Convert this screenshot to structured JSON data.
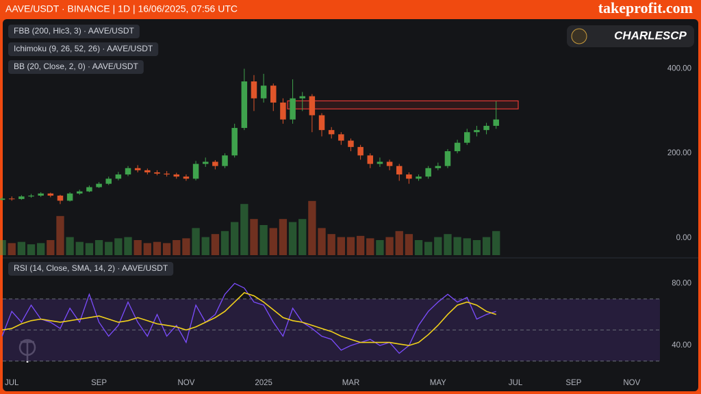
{
  "header": {
    "title": "AAVE/USDT · BINANCE | 1D | 16/06/2025, 07:56 UTC",
    "brand": "takeprofit.com",
    "logo_text": "CHARLESCP"
  },
  "indicators": [
    "FBB (200, Hlc3, 3) · AAVE/USDT",
    "Ichimoku (9, 26, 52, 26) · AAVE/USDT",
    "BB (20, Close, 2, 0) · AAVE/USDT"
  ],
  "chart_data": [
    {
      "type": "candlestick",
      "open": [
        90,
        93,
        92,
        98,
        100,
        105,
        100,
        88,
        105,
        110,
        120,
        128,
        140,
        150,
        165,
        160,
        155,
        152,
        150,
        145,
        140,
        175,
        180,
        170,
        195,
        260,
        370,
        330,
        360,
        320,
        280,
        330,
        335,
        290,
        255,
        245,
        230,
        215,
        195,
        175,
        180,
        170,
        150,
        140,
        145,
        165,
        170,
        205,
        225,
        250,
        255,
        265,
        null,
        null,
        null,
        null,
        null,
        null,
        null,
        null,
        null,
        null,
        null,
        null,
        null,
        null,
        null,
        null
      ],
      "high": [
        97,
        98,
        101,
        104,
        108,
        107,
        102,
        108,
        114,
        124,
        132,
        145,
        156,
        170,
        172,
        164,
        160,
        158,
        154,
        150,
        182,
        190,
        184,
        200,
        270,
        400,
        385,
        388,
        365,
        330,
        375,
        345,
        340,
        295,
        262,
        250,
        235,
        220,
        200,
        190,
        185,
        175,
        155,
        150,
        170,
        178,
        210,
        232,
        258,
        265,
        272,
        323,
        null,
        null,
        null,
        null,
        null,
        null,
        null,
        null,
        null,
        null,
        null,
        null,
        null,
        null,
        null,
        null
      ],
      "low": [
        88,
        88,
        90,
        95,
        97,
        96,
        80,
        86,
        102,
        108,
        118,
        125,
        136,
        146,
        155,
        150,
        148,
        145,
        140,
        135,
        136,
        168,
        162,
        165,
        190,
        255,
        300,
        320,
        300,
        270,
        270,
        300,
        250,
        240,
        235,
        220,
        205,
        185,
        165,
        168,
        160,
        135,
        128,
        135,
        140,
        160,
        165,
        200,
        220,
        240,
        245,
        258,
        null,
        null,
        null,
        null,
        null,
        null,
        null,
        null,
        null,
        null,
        null,
        null,
        null,
        null,
        null,
        null
      ],
      "close": [
        93,
        92,
        98,
        100,
        105,
        100,
        88,
        105,
        110,
        120,
        128,
        140,
        150,
        165,
        160,
        155,
        152,
        150,
        145,
        140,
        175,
        180,
        170,
        195,
        260,
        370,
        330,
        360,
        320,
        280,
        330,
        335,
        290,
        255,
        245,
        230,
        215,
        195,
        175,
        180,
        170,
        150,
        140,
        145,
        165,
        170,
        205,
        225,
        250,
        255,
        265,
        280,
        null,
        null,
        null,
        null,
        null,
        null,
        null,
        null,
        null,
        null,
        null,
        null,
        null,
        null,
        null,
        null
      ],
      "volume": [
        25,
        20,
        22,
        18,
        20,
        25,
        65,
        30,
        22,
        20,
        25,
        22,
        28,
        30,
        25,
        20,
        22,
        20,
        25,
        28,
        45,
        30,
        35,
        40,
        55,
        85,
        60,
        50,
        45,
        60,
        55,
        60,
        90,
        45,
        35,
        30,
        30,
        32,
        28,
        25,
        30,
        40,
        35,
        25,
        22,
        30,
        35,
        30,
        28,
        25,
        30,
        40,
        null,
        null,
        null,
        null,
        null,
        null,
        null,
        null,
        null,
        null,
        null,
        null,
        null,
        null,
        null,
        null
      ],
      "volume_lim": [
        0,
        100
      ],
      "up_color": "#3fa34d",
      "down_color": "#e0552a",
      "zone": [
        305,
        324
      ],
      "zone_color": "#e53935",
      "ylim": [
        -44,
        514
      ],
      "yticks": [
        {
          "value": 0,
          "label": "0.00"
        },
        {
          "value": 200,
          "label": "200.00"
        },
        {
          "value": 400,
          "label": "400.00"
        }
      ]
    },
    {
      "type": "line",
      "categories": [
        null,
        "JUL",
        null,
        null,
        null,
        null,
        null,
        null,
        null,
        null,
        "SEP",
        null,
        null,
        null,
        null,
        null,
        null,
        null,
        null,
        "NOV",
        null,
        null,
        null,
        null,
        null,
        null,
        null,
        "2025",
        null,
        null,
        null,
        null,
        null,
        null,
        null,
        null,
        "MAR",
        null,
        null,
        null,
        null,
        null,
        null,
        null,
        null,
        "MAY",
        null,
        null,
        null,
        null,
        null,
        null,
        null,
        "JUL",
        null,
        null,
        null,
        null,
        null,
        "SEP",
        null,
        null,
        null,
        null,
        null,
        "NOV",
        null,
        null
      ],
      "label": "RSI (14, Close, SMA, 14, 2) · AAVE/USDT",
      "series": [
        {
          "color": "#7c4dff",
          "values": [
            46,
            62,
            55,
            66,
            57,
            55,
            51,
            64,
            55,
            73,
            55,
            46,
            53,
            68,
            55,
            46,
            60,
            46,
            53,
            42,
            66,
            55,
            60,
            73,
            80,
            77,
            68,
            66,
            55,
            46,
            64,
            55,
            51,
            46,
            44,
            37,
            40,
            42,
            44,
            40,
            42,
            35,
            40,
            53,
            62,
            68,
            73,
            68,
            71,
            57,
            60,
            62,
            null,
            null,
            null,
            null,
            null,
            null,
            null,
            null,
            null,
            null,
            null,
            null,
            null,
            null,
            null,
            null
          ]
        },
        {
          "color": "#f2d21b",
          "values": [
            50,
            51,
            54,
            56,
            57,
            56,
            55,
            56,
            57,
            58,
            59,
            57,
            55,
            56,
            58,
            56,
            54,
            53,
            52,
            50,
            52,
            55,
            58,
            62,
            68,
            74,
            72,
            68,
            63,
            58,
            56,
            55,
            53,
            51,
            49,
            46,
            44,
            42,
            42,
            42,
            42,
            41,
            40,
            42,
            47,
            53,
            60,
            66,
            68,
            66,
            62,
            60,
            null,
            null,
            null,
            null,
            null,
            null,
            null,
            null,
            null,
            null,
            null,
            null,
            null,
            null,
            null,
            null
          ]
        }
      ],
      "levels": [
        30,
        50,
        70
      ],
      "band_color": "#2a1f45",
      "ylim": [
        22,
        96
      ],
      "yticks": [
        {
          "value": 40,
          "label": "40.00"
        },
        {
          "value": 80,
          "label": "80.00"
        }
      ]
    }
  ]
}
